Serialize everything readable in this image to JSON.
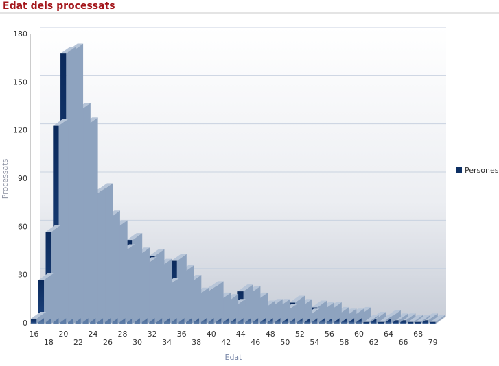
{
  "chart_data": {
    "type": "bar3d",
    "title": "Edat dels processats",
    "x_label": "Edat",
    "y_label": "Processats",
    "categories": [
      "16",
      null,
      "18",
      null,
      "20",
      null,
      "22",
      null,
      "24",
      null,
      "26",
      null,
      "28",
      null,
      "30",
      null,
      "32",
      null,
      "34",
      null,
      "36",
      null,
      "38",
      null,
      "40",
      null,
      "42",
      null,
      "44",
      null,
      "46",
      null,
      "48",
      null,
      "50",
      null,
      "52",
      null,
      "54",
      null,
      "56",
      null,
      "58",
      null,
      "60",
      null,
      "62",
      null,
      "64",
      null,
      "66",
      null,
      "68",
      null,
      "79"
    ],
    "series": [
      {
        "name": "Persones",
        "color": "#0d2f63",
        "values": [
          3,
          27,
          57,
          123,
          168,
          170,
          133,
          124,
          80,
          83,
          66,
          60,
          45,
          52,
          43,
          37,
          42,
          36,
          24,
          39,
          32,
          26,
          18,
          19,
          22,
          15,
          14,
          11,
          20,
          19,
          15,
          10,
          11,
          11,
          8,
          13,
          11,
          5,
          10,
          9,
          9,
          6,
          5,
          5,
          6,
          1,
          3,
          1,
          4,
          2,
          2,
          1,
          1,
          2,
          1
        ]
      }
    ],
    "ylim": [
      0,
      180
    ],
    "yticks": [
      0,
      30,
      60,
      90,
      120,
      150,
      180
    ],
    "grid": true,
    "legend": "right"
  }
}
